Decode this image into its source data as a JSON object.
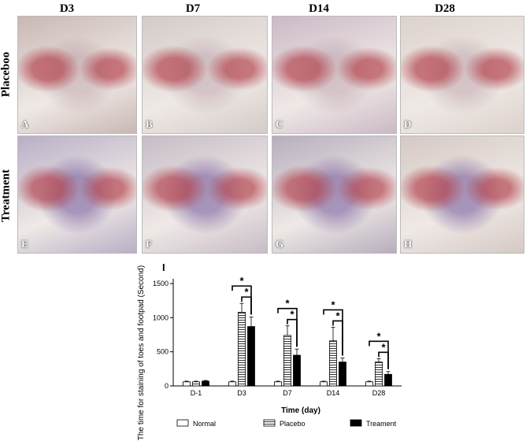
{
  "columns": [
    "D3",
    "D7",
    "D14",
    "D28"
  ],
  "rows": [
    "Placeboo",
    "Treatment"
  ],
  "panels": [
    {
      "label": "A",
      "tint": "#c9b8b4"
    },
    {
      "label": "B",
      "tint": "#d3cbc8"
    },
    {
      "label": "C",
      "tint": "#cbb9c7"
    },
    {
      "label": "D",
      "tint": "#ddd2cc"
    },
    {
      "label": "E",
      "tint": "#b9afc6"
    },
    {
      "label": "F",
      "tint": "#c7bcc7"
    },
    {
      "label": "G",
      "tint": "#b7aebd"
    },
    {
      "label": "H",
      "tint": "#d5c9c4"
    }
  ],
  "chart_data": {
    "type": "bar",
    "panel_label": "I",
    "ylabel": "The time for staining of toes and footpad (Second)",
    "xlabel": "Time (day)",
    "ylim": [
      0,
      1500
    ],
    "yticks": [
      0,
      500,
      1000,
      1500
    ],
    "categories": [
      "D-1",
      "D3",
      "D7",
      "D14",
      "D28"
    ],
    "series": [
      {
        "name": "Normal",
        "values": [
          60,
          60,
          60,
          60,
          60
        ],
        "errors": [
          10,
          10,
          10,
          10,
          10
        ]
      },
      {
        "name": "Placebo",
        "values": [
          60,
          1080,
          740,
          660,
          350
        ],
        "errors": [
          10,
          130,
          140,
          200,
          50
        ]
      },
      {
        "name": "Treament",
        "values": [
          70,
          870,
          450,
          350,
          170
        ],
        "errors": [
          10,
          140,
          90,
          60,
          40
        ]
      }
    ],
    "significance": [
      {
        "category": "D3",
        "pairs": [
          [
            "Normal",
            "Treament"
          ],
          [
            "Placebo",
            "Treament"
          ]
        ],
        "mark": "*"
      },
      {
        "category": "D7",
        "pairs": [
          [
            "Normal",
            "Treament"
          ],
          [
            "Placebo",
            "Treament"
          ]
        ],
        "mark": "*"
      },
      {
        "category": "D14",
        "pairs": [
          [
            "Normal",
            "Treament"
          ],
          [
            "Placebo",
            "Treament"
          ]
        ],
        "mark": "*"
      },
      {
        "category": "D28",
        "pairs": [
          [
            "Normal",
            "Treament"
          ],
          [
            "Placebo",
            "Treament"
          ]
        ],
        "mark": "*"
      }
    ],
    "legend_position": "bottom"
  }
}
